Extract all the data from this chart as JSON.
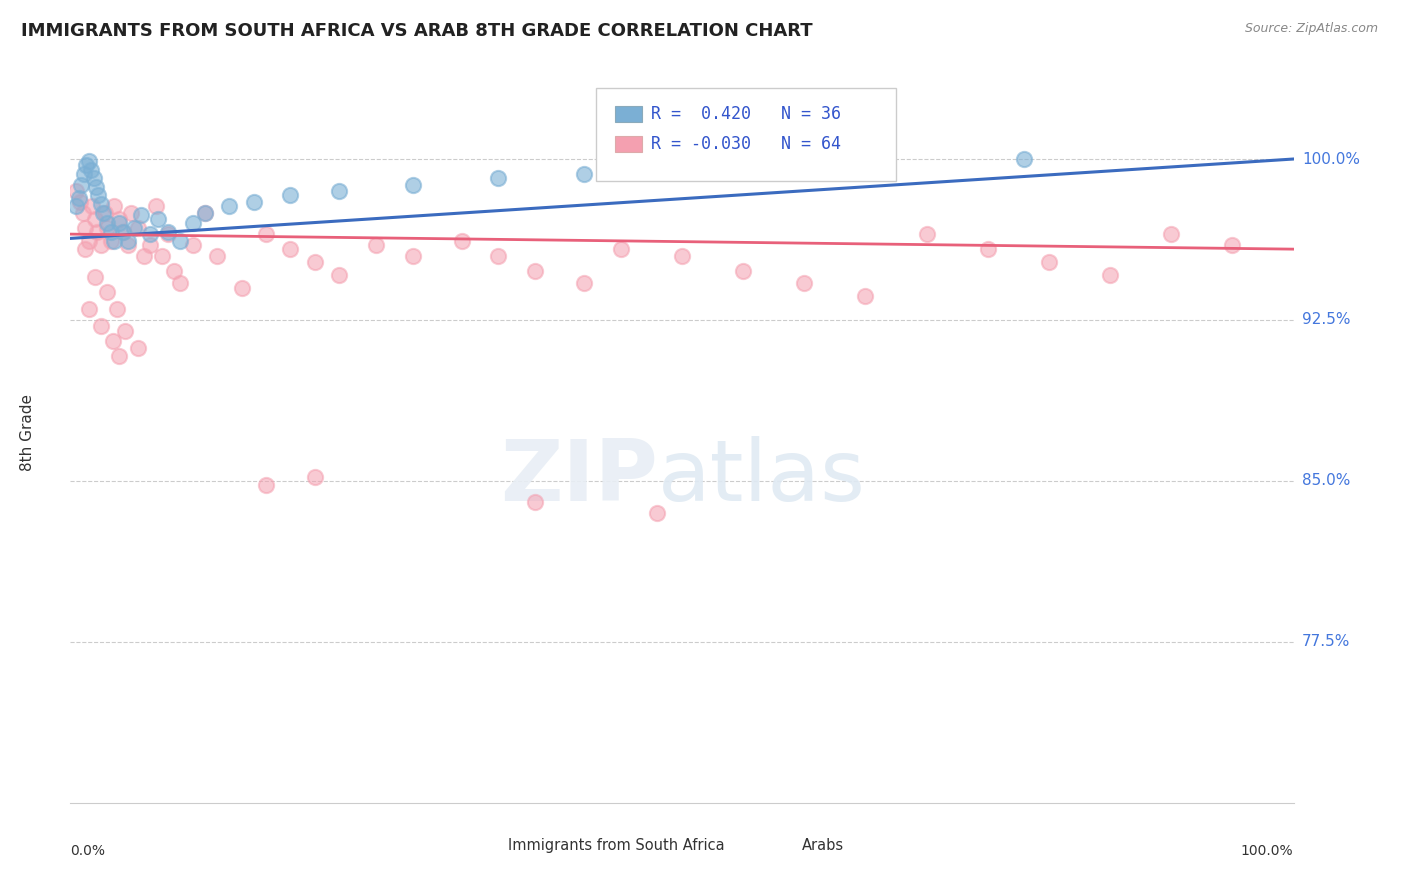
{
  "title": "IMMIGRANTS FROM SOUTH AFRICA VS ARAB 8TH GRADE CORRELATION CHART",
  "source": "Source: ZipAtlas.com",
  "ylabel": "8th Grade",
  "yticks": [
    0.775,
    0.85,
    0.925,
    1.0
  ],
  "ytick_labels": [
    "77.5%",
    "85.0%",
    "92.5%",
    "100.0%"
  ],
  "xlim": [
    0.0,
    1.0
  ],
  "ylim": [
    0.7,
    1.045
  ],
  "legend_blue_r": "0.420",
  "legend_blue_n": "36",
  "legend_pink_r": "-0.030",
  "legend_pink_n": "64",
  "blue_color": "#7BAFD4",
  "pink_color": "#F4A0B0",
  "trend_blue_color": "#3B6BBF",
  "trend_pink_color": "#E8607A",
  "blue_scatter_x": [
    0.005,
    0.007,
    0.009,
    0.011,
    0.013,
    0.015,
    0.017,
    0.019,
    0.021,
    0.023,
    0.025,
    0.027,
    0.03,
    0.033,
    0.036,
    0.04,
    0.043,
    0.047,
    0.052,
    0.058,
    0.065,
    0.072,
    0.08,
    0.09,
    0.1,
    0.11,
    0.13,
    0.15,
    0.18,
    0.22,
    0.28,
    0.35,
    0.42,
    0.5,
    0.62,
    0.78
  ],
  "blue_scatter_y": [
    0.978,
    0.982,
    0.988,
    0.993,
    0.997,
    0.999,
    0.995,
    0.991,
    0.987,
    0.983,
    0.979,
    0.975,
    0.97,
    0.966,
    0.962,
    0.97,
    0.966,
    0.962,
    0.968,
    0.974,
    0.965,
    0.972,
    0.966,
    0.962,
    0.97,
    0.975,
    0.978,
    0.98,
    0.983,
    0.985,
    0.988,
    0.991,
    0.993,
    0.996,
    0.998,
    1.0
  ],
  "pink_scatter_x": [
    0.005,
    0.008,
    0.01,
    0.012,
    0.015,
    0.018,
    0.02,
    0.022,
    0.025,
    0.028,
    0.03,
    0.033,
    0.036,
    0.04,
    0.043,
    0.047,
    0.05,
    0.055,
    0.06,
    0.065,
    0.07,
    0.075,
    0.08,
    0.085,
    0.09,
    0.1,
    0.11,
    0.12,
    0.14,
    0.16,
    0.18,
    0.2,
    0.22,
    0.25,
    0.28,
    0.32,
    0.35,
    0.38,
    0.42,
    0.45,
    0.5,
    0.55,
    0.6,
    0.65,
    0.7,
    0.75,
    0.8,
    0.85,
    0.9,
    0.95,
    0.015,
    0.025,
    0.035,
    0.04,
    0.012,
    0.02,
    0.03,
    0.038,
    0.045,
    0.055,
    0.16,
    0.2,
    0.38,
    0.48
  ],
  "pink_scatter_y": [
    0.985,
    0.98,
    0.975,
    0.968,
    0.962,
    0.978,
    0.972,
    0.966,
    0.96,
    0.975,
    0.968,
    0.962,
    0.978,
    0.972,
    0.966,
    0.96,
    0.975,
    0.968,
    0.955,
    0.96,
    0.978,
    0.955,
    0.965,
    0.948,
    0.942,
    0.96,
    0.975,
    0.955,
    0.94,
    0.965,
    0.958,
    0.952,
    0.946,
    0.96,
    0.955,
    0.962,
    0.955,
    0.948,
    0.942,
    0.958,
    0.955,
    0.948,
    0.942,
    0.936,
    0.965,
    0.958,
    0.952,
    0.946,
    0.965,
    0.96,
    0.93,
    0.922,
    0.915,
    0.908,
    0.958,
    0.945,
    0.938,
    0.93,
    0.92,
    0.912,
    0.848,
    0.852,
    0.84,
    0.835
  ],
  "trend_blue_start_y": 0.963,
  "trend_blue_end_y": 1.0,
  "trend_pink_start_y": 0.965,
  "trend_pink_end_y": 0.958
}
